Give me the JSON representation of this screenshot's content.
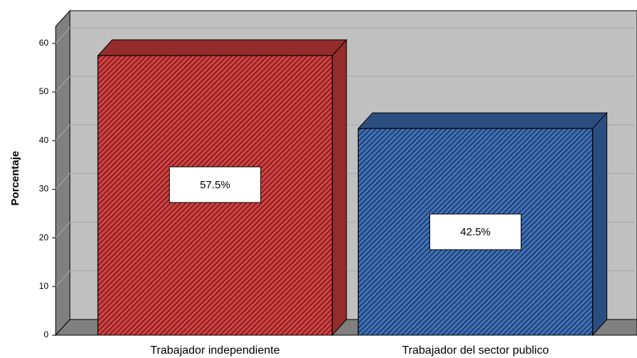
{
  "chart_data": {
    "type": "bar",
    "ylabel": "Porcentaje",
    "categories": [
      "Trabajador independiente",
      "Trabajador del sector publico"
    ],
    "values": [
      57.5,
      42.5
    ],
    "value_labels": [
      "57.5%",
      "42.5%"
    ],
    "colors": [
      "#d43f3f",
      "#3d6fb8"
    ],
    "ylim": [
      0,
      63.5
    ],
    "yticks": [
      0,
      10,
      20,
      30,
      40,
      50,
      60
    ],
    "grid": true
  }
}
